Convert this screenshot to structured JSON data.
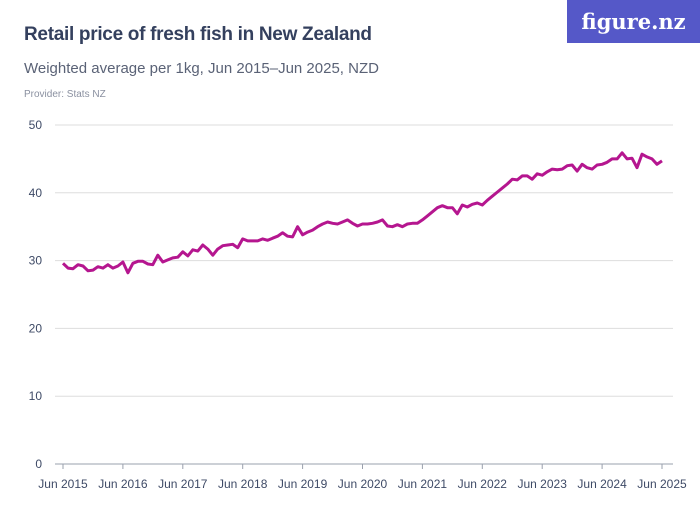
{
  "header": {
    "title": "Retail price of fresh fish in New Zealand",
    "subtitle": "Weighted average per 1kg, Jun 2015–Jun 2025, NZD",
    "provider": "Provider: Stats NZ",
    "logo": "figure.nz"
  },
  "colors": {
    "line": "#b5168f",
    "grid": "#dddddd",
    "logo_bg": "#5558c8"
  },
  "chart_data": {
    "type": "line",
    "title": "Retail price of fresh fish in New Zealand",
    "xlabel": "",
    "ylabel": "",
    "ylim": [
      0,
      50
    ],
    "yticks": [
      0,
      10,
      20,
      30,
      40,
      50
    ],
    "xticks": [
      "Jun 2015",
      "Jun 2016",
      "Jun 2017",
      "Jun 2018",
      "Jun 2019",
      "Jun 2020",
      "Jun 2021",
      "Jun 2022",
      "Jun 2023",
      "Jun 2024",
      "Jun 2025"
    ],
    "x_range": [
      "Jun 2015",
      "Jun 2025"
    ],
    "frequency": "monthly",
    "grid": "horizontal",
    "values": [
      29.6,
      28.9,
      28.8,
      29.4,
      29.2,
      28.5,
      28.6,
      29.1,
      28.9,
      29.4,
      28.9,
      29.2,
      29.8,
      28.2,
      29.6,
      29.9,
      29.9,
      29.5,
      29.4,
      30.8,
      29.8,
      30.1,
      30.4,
      30.5,
      31.3,
      30.7,
      31.6,
      31.4,
      32.3,
      31.7,
      30.8,
      31.7,
      32.2,
      32.3,
      32.4,
      31.9,
      33.2,
      32.9,
      32.9,
      32.9,
      33.2,
      33.0,
      33.3,
      33.6,
      34.1,
      33.6,
      33.5,
      35.0,
      33.8,
      34.2,
      34.5,
      35.0,
      35.4,
      35.7,
      35.5,
      35.4,
      35.7,
      36.0,
      35.5,
      35.1,
      35.4,
      35.4,
      35.5,
      35.7,
      36.0,
      35.1,
      35.0,
      35.3,
      35.0,
      35.4,
      35.5,
      35.5,
      36.0,
      36.6,
      37.2,
      37.8,
      38.1,
      37.8,
      37.8,
      36.9,
      38.2,
      37.9,
      38.3,
      38.5,
      38.2,
      38.9,
      39.5,
      40.1,
      40.7,
      41.3,
      42.0,
      41.9,
      42.5,
      42.5,
      42.0,
      42.8,
      42.6,
      43.1,
      43.5,
      43.4,
      43.5,
      44.0,
      44.1,
      43.2,
      44.2,
      43.7,
      43.5,
      44.1,
      44.2,
      44.5,
      45.0,
      45.0,
      45.9,
      45.0,
      45.1,
      43.7,
      45.7,
      45.3,
      45.0,
      44.2,
      44.7
    ]
  }
}
